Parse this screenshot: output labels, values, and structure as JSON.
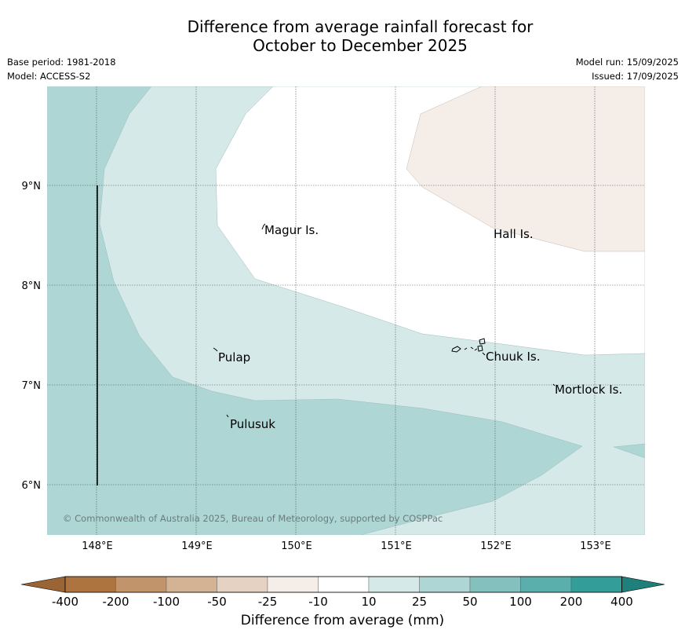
{
  "title_line1": "Difference from average rainfall forecast for",
  "title_line2": "October to December 2025",
  "base_period": "Base period: 1981-2018",
  "model": "Model: ACCESS-S2",
  "model_run": "Model run: 15/09/2025",
  "issued": "Issued: 17/09/2025",
  "copyright": "© Commonwealth of Australia 2025, Bureau of Meteorology, supported by COSPPac",
  "lat_ticks": [
    "9°N",
    "8°N",
    "7°N",
    "6°N"
  ],
  "lon_ticks": [
    "148°E",
    "149°E",
    "150°E",
    "151°E",
    "152°E",
    "153°E"
  ],
  "places": [
    "Magur Is.",
    "Hall Is.",
    "Pulap",
    "Chuuk Is.",
    "Mortlock Is.",
    "Pulusuk"
  ],
  "colorbar": {
    "labels": [
      "-400",
      "-200",
      "-100",
      "-50",
      "-25",
      "-10",
      "10",
      "25",
      "50",
      "100",
      "200",
      "400"
    ],
    "colors": [
      "#ae7440",
      "#c2946b",
      "#d3b394",
      "#e6d2c2",
      "#f5ede8",
      "#ffffff",
      "#d5e9e8",
      "#add6d5",
      "#84c1be",
      "#5aaeab",
      "#339e99"
    ],
    "under_color": "#9a6434",
    "over_color": "#1f7f7b",
    "title": "Difference from average (mm)"
  },
  "map_colors": {
    "plus_25_50": "#add6d5",
    "plus_10_25": "#d5e9e8",
    "minus_10_10": "#ffffff",
    "minus_25_10": "#f5ede8"
  }
}
